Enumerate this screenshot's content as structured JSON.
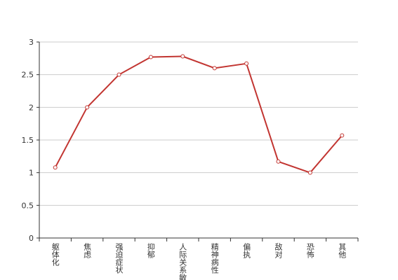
{
  "chart_data": {
    "type": "line",
    "categories": [
      "躯体化",
      "焦虑",
      "强迫症状",
      "抑郁",
      "人际关系敏感",
      "精神病性",
      "偏执",
      "敌对",
      "恐怖",
      "其他"
    ],
    "series": [
      {
        "color": "#c23531",
        "values": [
          1.08,
          2.0,
          2.5,
          2.77,
          2.78,
          2.6,
          2.67,
          1.17,
          1.0,
          1.57
        ]
      }
    ],
    "ylim": [
      0,
      3
    ],
    "yticks": [
      0,
      0.5,
      1,
      1.5,
      2,
      2.5,
      3
    ],
    "grid": true
  }
}
